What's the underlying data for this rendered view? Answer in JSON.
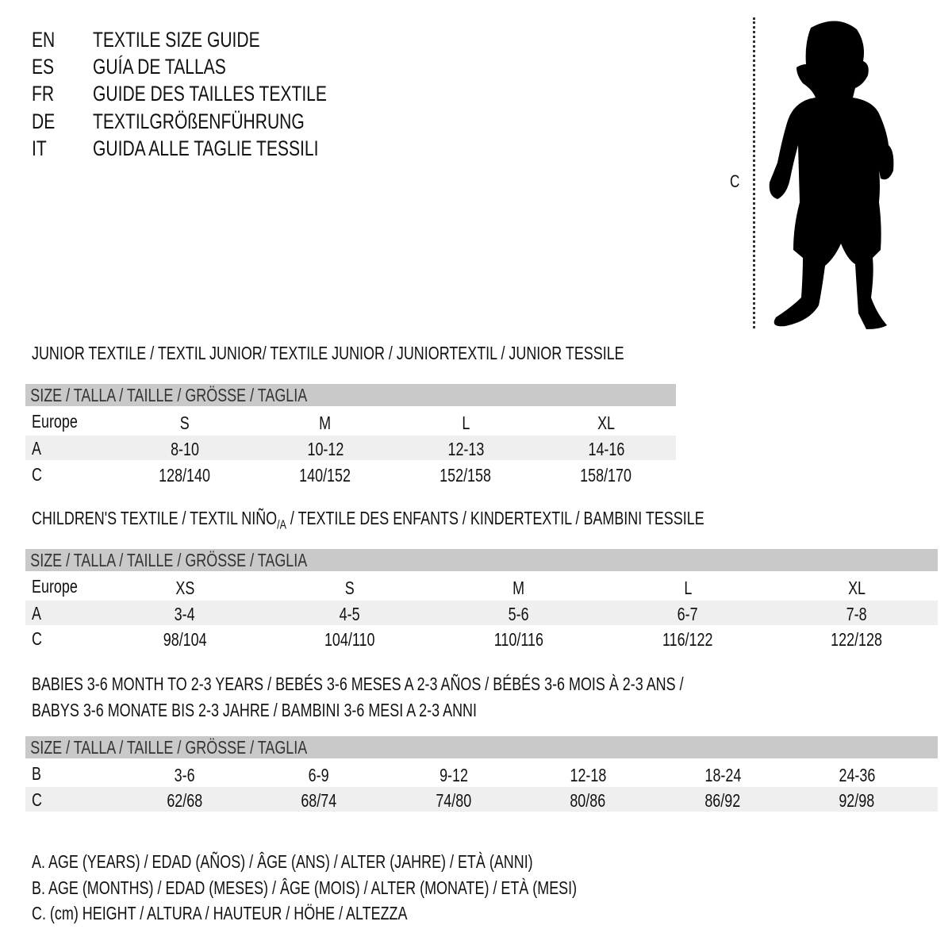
{
  "languages": [
    {
      "code": "EN",
      "title": "TEXTILE SIZE GUIDE"
    },
    {
      "code": "ES",
      "title": "GUÍA DE TALLAS"
    },
    {
      "code": "FR",
      "title": "GUIDE DES TAILLES TEXTILE"
    },
    {
      "code": "DE",
      "title": "TEXTILGRÖßENFÜHRUNG"
    },
    {
      "code": "IT",
      "title": "GUIDA ALLE TAGLIE TESSILI"
    }
  ],
  "figure": {
    "measure_label": "C"
  },
  "size_header": "SIZE / TALLA / TAILLE / GRÖSSE / TAGLIA",
  "junior": {
    "heading": "JUNIOR TEXTILE / TEXTIL JUNIOR/ TEXTILE JUNIOR / JUNIORTEXTIL / JUNIOR TESSILE",
    "rows": [
      {
        "label": "Europe",
        "values": [
          "S",
          "M",
          "L",
          "XL"
        ]
      },
      {
        "label": "A",
        "values": [
          "8-10",
          "10-12",
          "12-13",
          "14-16"
        ]
      },
      {
        "label": "C",
        "values": [
          "128/140",
          "140/152",
          "152/158",
          "158/170"
        ]
      }
    ]
  },
  "children": {
    "heading_pre": "CHILDREN'S TEXTILE / TEXTIL NIÑO",
    "heading_sub": "/A",
    "heading_post": " / TEXTILE DES ENFANTS / KINDERTEXTIL / BAMBINI TESSILE",
    "rows": [
      {
        "label": "Europe",
        "values": [
          "XS",
          "S",
          "M",
          "L",
          "XL"
        ]
      },
      {
        "label": "A",
        "values": [
          "3-4",
          "4-5",
          "5-6",
          "6-7",
          "7-8"
        ]
      },
      {
        "label": "C",
        "values": [
          "98/104",
          "104/110",
          "110/116",
          "116/122",
          "122/128"
        ]
      }
    ]
  },
  "babies": {
    "heading_line1": "BABIES 3-6 MONTH TO 2-3 YEARS / BEBÉS 3-6 MESES A 2-3 AÑOS / BÉBÉS 3-6 MOIS À 2-3 ANS /",
    "heading_line2": "BABYS 3-6 MONATE BIS 2-3 JAHRE / BAMBINI 3-6 MESI A 2-3 ANNI",
    "rows": [
      {
        "label": "B",
        "values": [
          "3-6",
          "6-9",
          "9-12",
          "12-18",
          "18-24",
          "24-36"
        ]
      },
      {
        "label": "C",
        "values": [
          "62/68",
          "68/74",
          "74/80",
          "80/86",
          "86/92",
          "92/98"
        ]
      }
    ]
  },
  "legend": [
    "A. AGE (YEARS) / EDAD (AÑOS) / ÂGE (ANS) / ALTER (JAHRE) / ETÀ (ANNI)",
    "B. AGE (MONTHS) / EDAD (MESES) / ÂGE (MOIS) / ALTER (MONATE) / ETÀ (MESI)",
    "C. (cm) HEIGHT / ALTURA / HAUTEUR / HÖHE / ALTEZZA"
  ],
  "colors": {
    "header_bar": "#c9c9c9",
    "alt_row": "#efefef",
    "text": "#111111"
  }
}
